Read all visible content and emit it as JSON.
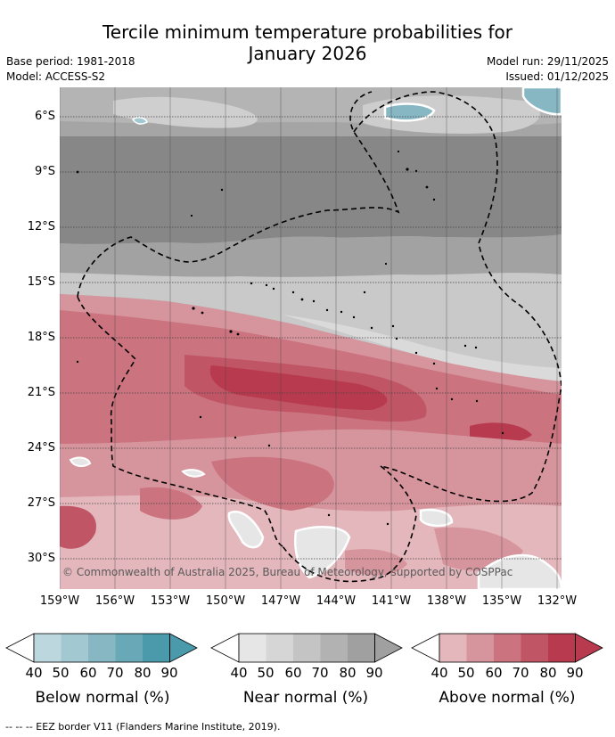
{
  "title": {
    "line1": "Tercile minimum temperature probabilities for",
    "line2": "January 2026"
  },
  "meta": {
    "base_period": "Base period: 1981-2018",
    "model": "Model: ACCESS-S2",
    "model_run": "Model run: 29/11/2025",
    "issued": "Issued: 01/12/2025"
  },
  "map": {
    "lat_ticks": [
      "6°S",
      "9°S",
      "12°S",
      "15°S",
      "18°S",
      "21°S",
      "24°S",
      "27°S",
      "30°S"
    ],
    "lon_ticks": [
      "159°W",
      "156°W",
      "153°W",
      "150°W",
      "147°W",
      "144°W",
      "141°W",
      "138°W",
      "135°W",
      "132°W"
    ],
    "copyright": "© Commonwealth of Australia 2025, Bureau of Meteorology, supported by COSPPac"
  },
  "legend": {
    "ticks": [
      "40",
      "50",
      "60",
      "70",
      "80",
      "90"
    ],
    "below": {
      "label": "Below normal (%)",
      "colors": [
        "#bdd7df",
        "#a2c9d2",
        "#86b7c3",
        "#69a9b7",
        "#4a9aab"
      ]
    },
    "near": {
      "label": "Near normal (%)",
      "colors": [
        "#e6e6e6",
        "#d6d6d6",
        "#c4c4c4",
        "#b2b2b2",
        "#a0a0a0"
      ]
    },
    "above": {
      "label": "Above normal (%)",
      "colors": [
        "#e3b7bc",
        "#d6959d",
        "#cb737f",
        "#c05665",
        "#b83a4e"
      ]
    }
  },
  "footer": "--  --  -- EEZ border V11 (Flanders Marine Institute, 2019)."
}
